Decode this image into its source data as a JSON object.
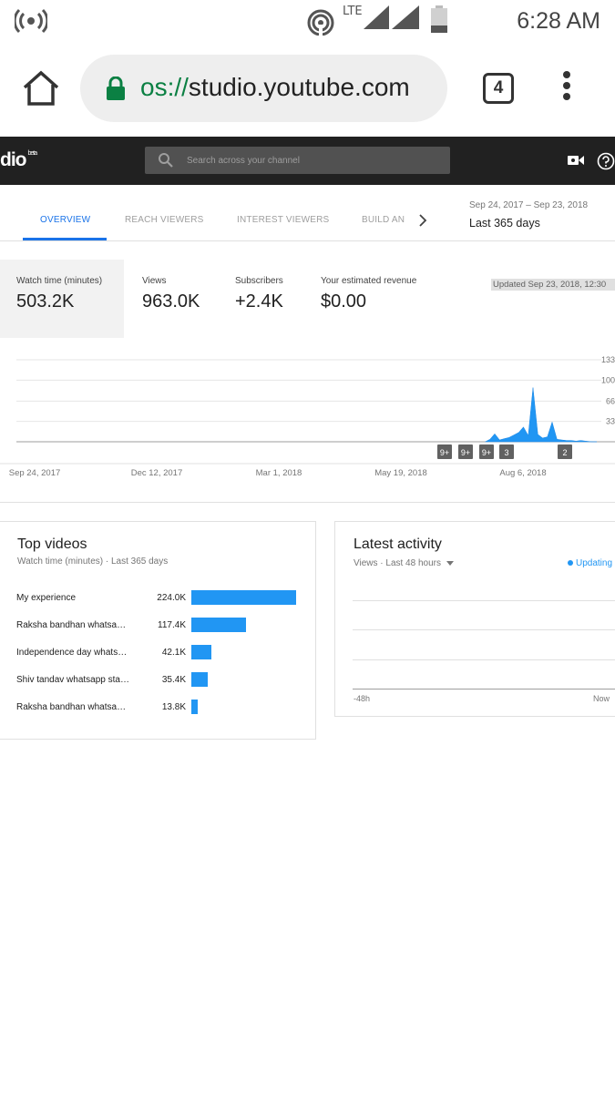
{
  "statusbar": {
    "network": "LTE",
    "time": "6:28 AM",
    "icons": [
      "broadcast-icon",
      "hotspot-icon",
      "signal-icon",
      "signal-icon",
      "battery-icon"
    ]
  },
  "browser": {
    "url_scheme": "os://",
    "url_host": "studio.youtube.com",
    "tab_count": "4",
    "icons": [
      "home-icon",
      "lock-icon",
      "more-vert-icon"
    ]
  },
  "studio": {
    "logo": "dio",
    "logo_badge": "beta",
    "search_placeholder": "Search across your channel",
    "icons": [
      "search-icon",
      "camera-icon",
      "help-icon"
    ]
  },
  "tabs": {
    "items": [
      {
        "label": "OVERVIEW",
        "active": true
      },
      {
        "label": "REACH VIEWERS",
        "active": false
      },
      {
        "label": "INTEREST VIEWERS",
        "active": false
      },
      {
        "label": "BUILD AN",
        "active": false
      }
    ],
    "date_range": "Sep 24, 2017 – Sep 23, 2018",
    "date_label": "Last 365 days"
  },
  "metrics": [
    {
      "label": "Watch time (minutes)",
      "value": "503.2K",
      "active": true
    },
    {
      "label": "Views",
      "value": "963.0K",
      "active": false
    },
    {
      "label": "Subscribers",
      "value": "+2.4K",
      "active": false
    },
    {
      "label": "Your estimated revenue",
      "value": "$0.00",
      "active": false
    }
  ],
  "updated": "Updated Sep 23, 2018, 12:30",
  "chart_data": {
    "type": "area",
    "title": "",
    "xlabel": "",
    "ylabel": "",
    "ytick_labels": [
      "133",
      "100",
      "66",
      "33"
    ],
    "ylim": [
      0,
      133
    ],
    "xtick_labels": [
      "Sep 24, 2017",
      "Dec 12, 2017",
      "Mar 1, 2018",
      "May 19, 2018",
      "Aug 6, 2018"
    ],
    "x": [
      "Jul 15, 2018",
      "Jul 18, 2018",
      "Jul 21, 2018",
      "Jul 24, 2018",
      "Jul 27, 2018",
      "Jul 30, 2018",
      "Aug 2, 2018",
      "Aug 5, 2018",
      "Aug 8, 2018",
      "Aug 11, 2018",
      "Aug 14, 2018",
      "Aug 17, 2018",
      "Aug 20, 2018",
      "Aug 23, 2018",
      "Aug 26, 2018",
      "Aug 29, 2018",
      "Sep 1, 2018",
      "Sep 4, 2018",
      "Sep 7, 2018",
      "Sep 10, 2018",
      "Sep 13, 2018",
      "Sep 16, 2018",
      "Sep 20, 2018",
      "Sep 23, 2018"
    ],
    "values": [
      0,
      4,
      13,
      3,
      5,
      7,
      11,
      15,
      24,
      10,
      88,
      12,
      6,
      8,
      32,
      4,
      3,
      2,
      2,
      1,
      2,
      1,
      0,
      0
    ],
    "annotations": [
      "9+",
      "9+",
      "9+",
      "3",
      "2"
    ],
    "grid": true
  },
  "top_videos": {
    "title": "Top videos",
    "subtitle": "Watch time (minutes) · Last 365 days",
    "rows": [
      {
        "name": "My experience",
        "value_label": "224.0K",
        "value": 224.0
      },
      {
        "name": "Raksha bandhan whatsa…",
        "value_label": "117.4K",
        "value": 117.4
      },
      {
        "name": "Independence day whats…",
        "value_label": "42.1K",
        "value": 42.1
      },
      {
        "name": "Shiv tandav whatsapp sta…",
        "value_label": "35.4K",
        "value": 35.4
      },
      {
        "name": "Raksha bandhan whatsa…",
        "value_label": "13.8K",
        "value": 13.8
      }
    ]
  },
  "latest_activity": {
    "title": "Latest activity",
    "subtitle": "Views · Last 48 hours",
    "status": "Updating",
    "x_start": "-48h",
    "x_end": "Now"
  }
}
